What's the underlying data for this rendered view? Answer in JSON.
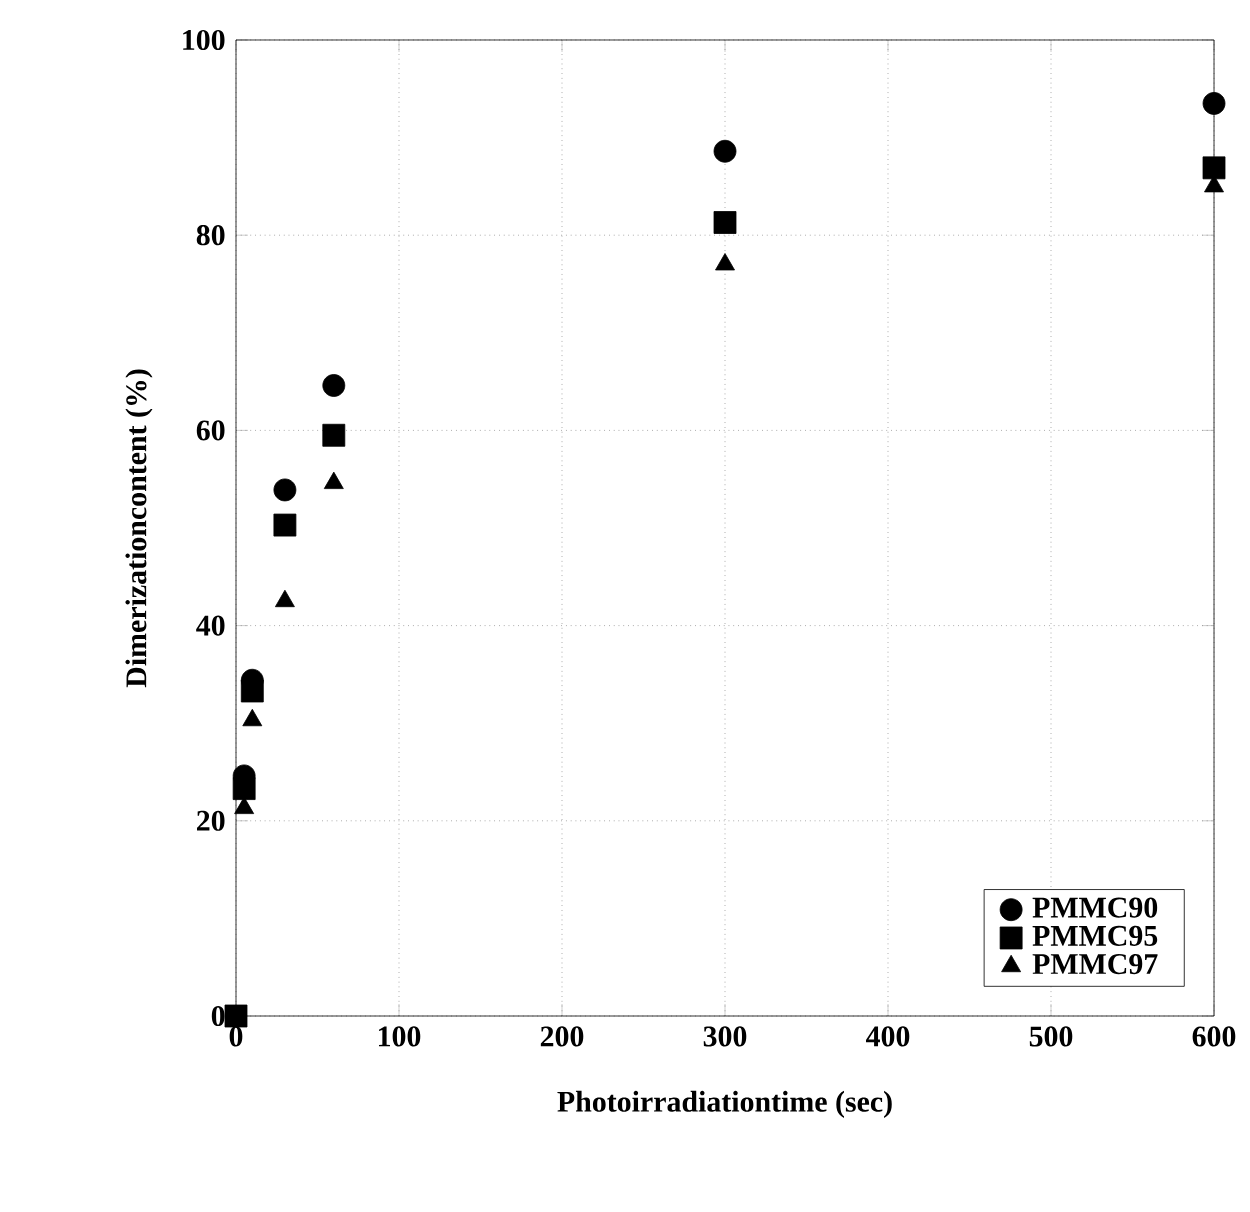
{
  "chart_data": {
    "type": "scatter",
    "xlabel": "Photoirradiationtime (sec)",
    "ylabel": "Dimerizationcontent (%)",
    "xlim": [
      0,
      600
    ],
    "ylim": [
      0,
      100
    ],
    "xticks": [
      0,
      100,
      200,
      300,
      400,
      500,
      600
    ],
    "yticks": [
      0,
      20,
      40,
      60,
      80,
      100
    ],
    "grid": true,
    "legend": "bottom right",
    "series": [
      {
        "name": "PMMC90",
        "color": "#000000",
        "marker": "circle",
        "x": [
          5,
          10,
          30,
          60,
          300,
          600
        ],
        "values": [
          24.6,
          34.4,
          53.9,
          64.6,
          88.6,
          93.5
        ]
      },
      {
        "name": "PMMC95",
        "color": "#000000",
        "marker": "square",
        "x": [
          0,
          5,
          10,
          30,
          60,
          300,
          600
        ],
        "values": [
          0,
          23.3,
          33.3,
          50.3,
          59.5,
          81.3,
          86.9
        ]
      },
      {
        "name": "PMMC97",
        "color": "#000000",
        "marker": "triangle",
        "x": [
          5,
          10,
          30,
          60,
          300,
          600
        ],
        "values": [
          21.3,
          30.3,
          42.5,
          54.6,
          77.0,
          85.0
        ]
      }
    ]
  }
}
